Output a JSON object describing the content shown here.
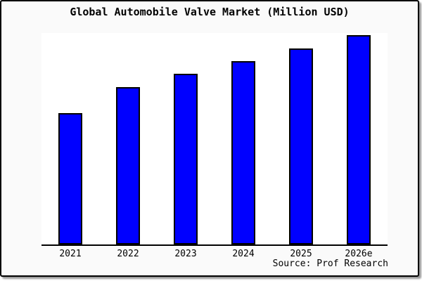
{
  "window": {
    "background": "#fafafa",
    "frame_border_color": "#000000",
    "shadow_color": "#9a9a9a"
  },
  "chart_data": {
    "type": "bar",
    "title": "Global Automobile Valve Market (Million USD)",
    "categories": [
      "2021",
      "2022",
      "2023",
      "2024",
      "2025",
      "2026e"
    ],
    "values": [
      188,
      226,
      245,
      263,
      281,
      300
    ],
    "value_note": "y-axis has no ticks or labels; values are relative bar heights estimated from pixels (max bar = 300)",
    "ylim": [
      0,
      300
    ],
    "xlabel": "",
    "ylabel": "",
    "grid": false,
    "legend": false,
    "y_axis_visible": false,
    "bar_fill": "#0000ff",
    "bar_border": "#000000",
    "plot_background": "#ffffff",
    "axis_color": "#000000"
  },
  "footer": {
    "source_label": "Source: Prof Research"
  }
}
